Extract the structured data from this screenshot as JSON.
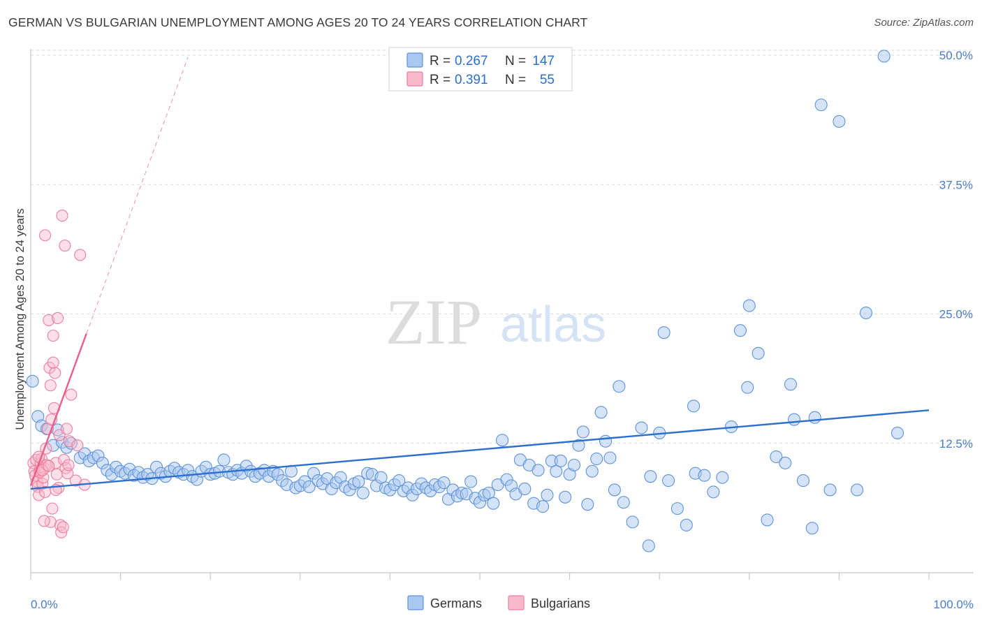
{
  "title": "GERMAN VS BULGARIAN UNEMPLOYMENT AMONG AGES 20 TO 24 YEARS CORRELATION CHART",
  "source": "Source: ZipAtlas.com",
  "watermark": {
    "zip": "ZIP",
    "atlas": "atlas"
  },
  "colors": {
    "german_fill": "#a9c8f0",
    "german_stroke": "#5f93d8",
    "german_line": "#2b6fcf",
    "bulgarian_fill": "#f8b9cc",
    "bulgarian_stroke": "#eb7fa0",
    "bulgarian_line": "#e8608a",
    "axis_text": "#4a7cc9",
    "grid": "#d9d9d9"
  },
  "legend": {
    "rows": [
      {
        "r_label": "R =",
        "r_value": "0.267",
        "n_label": "N =",
        "n_value": "147"
      },
      {
        "r_label": "R =",
        "r_value": "0.391",
        "n_label": "N =",
        "n_value": "55"
      }
    ]
  },
  "chart_data": {
    "type": "scatter",
    "title": "GERMAN VS BULGARIAN UNEMPLOYMENT AMONG AGES 20 TO 24 YEARS CORRELATION CHART",
    "xlabel": "",
    "ylabel": "Unemployment Among Ages 20 to 24 years",
    "xlim": [
      0,
      100
    ],
    "ylim": [
      0,
      50
    ],
    "x_tick_labels": [
      "0.0%",
      "100.0%"
    ],
    "y_ticks": [
      12.5,
      25.0,
      37.5,
      50.0
    ],
    "y_tick_labels": [
      "12.5%",
      "25.0%",
      "37.5%",
      "50.0%"
    ],
    "grid": true,
    "legend_position": "bottom",
    "series": [
      {
        "name": "Germans",
        "trendline": {
          "x": [
            0,
            100
          ],
          "y": [
            8.1,
            15.7
          ]
        },
        "points": [
          [
            0.2,
            18.5
          ],
          [
            0.8,
            15.1
          ],
          [
            1.2,
            14.2
          ],
          [
            1.8,
            13.9
          ],
          [
            2.5,
            12.3
          ],
          [
            3.0,
            13.8
          ],
          [
            3.5,
            12.6
          ],
          [
            4.0,
            12.1
          ],
          [
            4.5,
            12.5
          ],
          [
            5.5,
            11.1
          ],
          [
            6.0,
            11.5
          ],
          [
            6.5,
            10.8
          ],
          [
            7.0,
            11.1
          ],
          [
            7.5,
            11.3
          ],
          [
            8.0,
            10.6
          ],
          [
            8.5,
            9.9
          ],
          [
            9.0,
            9.5
          ],
          [
            9.5,
            10.2
          ],
          [
            10.0,
            9.8
          ],
          [
            10.5,
            9.6
          ],
          [
            11.0,
            10.0
          ],
          [
            11.5,
            9.4
          ],
          [
            12.0,
            9.7
          ],
          [
            12.5,
            9.2
          ],
          [
            13.0,
            9.5
          ],
          [
            13.5,
            9.1
          ],
          [
            14.0,
            10.2
          ],
          [
            14.5,
            9.6
          ],
          [
            15.0,
            9.3
          ],
          [
            15.5,
            9.8
          ],
          [
            16.0,
            10.1
          ],
          [
            16.5,
            9.7
          ],
          [
            17.0,
            9.5
          ],
          [
            17.5,
            9.9
          ],
          [
            18.0,
            9.3
          ],
          [
            18.5,
            9.0
          ],
          [
            19.0,
            9.8
          ],
          [
            19.5,
            10.2
          ],
          [
            20.0,
            9.5
          ],
          [
            20.5,
            9.6
          ],
          [
            21.0,
            9.8
          ],
          [
            21.5,
            10.9
          ],
          [
            22.0,
            9.7
          ],
          [
            22.5,
            9.5
          ],
          [
            23.0,
            9.9
          ],
          [
            23.5,
            9.6
          ],
          [
            24.0,
            10.3
          ],
          [
            24.5,
            9.8
          ],
          [
            25.0,
            9.3
          ],
          [
            25.5,
            9.6
          ],
          [
            26.0,
            9.9
          ],
          [
            26.5,
            9.3
          ],
          [
            27.0,
            9.8
          ],
          [
            27.5,
            9.5
          ],
          [
            28.0,
            8.9
          ],
          [
            28.5,
            8.5
          ],
          [
            29.0,
            9.8
          ],
          [
            29.5,
            8.2
          ],
          [
            30.0,
            8.4
          ],
          [
            30.5,
            8.8
          ],
          [
            31.0,
            8.3
          ],
          [
            31.5,
            9.6
          ],
          [
            32.0,
            8.9
          ],
          [
            32.5,
            8.6
          ],
          [
            33.0,
            9.1
          ],
          [
            33.5,
            8.1
          ],
          [
            34.0,
            8.7
          ],
          [
            34.5,
            9.2
          ],
          [
            35.0,
            8.3
          ],
          [
            35.5,
            8.0
          ],
          [
            36.0,
            8.6
          ],
          [
            36.5,
            8.8
          ],
          [
            37.0,
            7.7
          ],
          [
            37.5,
            9.6
          ],
          [
            38.0,
            9.5
          ],
          [
            38.5,
            8.4
          ],
          [
            39.0,
            9.2
          ],
          [
            39.5,
            8.2
          ],
          [
            40.0,
            8.0
          ],
          [
            40.5,
            8.5
          ],
          [
            41.0,
            8.9
          ],
          [
            41.5,
            7.9
          ],
          [
            42.0,
            8.2
          ],
          [
            42.5,
            7.5
          ],
          [
            43.0,
            8.1
          ],
          [
            43.5,
            8.6
          ],
          [
            44.0,
            8.2
          ],
          [
            44.5,
            7.9
          ],
          [
            45.0,
            8.5
          ],
          [
            45.5,
            8.3
          ],
          [
            46.0,
            8.7
          ],
          [
            46.5,
            7.1
          ],
          [
            47.0,
            8.0
          ],
          [
            47.5,
            7.4
          ],
          [
            48.0,
            7.7
          ],
          [
            48.5,
            7.6
          ],
          [
            49.0,
            8.8
          ],
          [
            49.5,
            7.2
          ],
          [
            50.0,
            6.8
          ],
          [
            50.5,
            7.5
          ],
          [
            51.0,
            7.7
          ],
          [
            51.5,
            6.7
          ],
          [
            52.0,
            8.5
          ],
          [
            52.5,
            12.8
          ],
          [
            53.0,
            9.0
          ],
          [
            53.5,
            8.4
          ],
          [
            54.0,
            7.6
          ],
          [
            54.5,
            10.9
          ],
          [
            55.0,
            8.1
          ],
          [
            55.5,
            10.4
          ],
          [
            56.0,
            6.7
          ],
          [
            56.5,
            9.9
          ],
          [
            57.0,
            6.4
          ],
          [
            57.5,
            7.5
          ],
          [
            58.0,
            10.8
          ],
          [
            58.5,
            9.8
          ],
          [
            59.0,
            10.8
          ],
          [
            59.5,
            7.3
          ],
          [
            60.0,
            9.5
          ],
          [
            60.5,
            10.4
          ],
          [
            61.0,
            12.3
          ],
          [
            61.5,
            13.6
          ],
          [
            62.0,
            6.6
          ],
          [
            62.5,
            9.8
          ],
          [
            63.0,
            11.0
          ],
          [
            63.5,
            15.5
          ],
          [
            64.0,
            12.7
          ],
          [
            64.5,
            11.1
          ],
          [
            65.0,
            8.0
          ],
          [
            65.5,
            18.0
          ],
          [
            66.0,
            6.8
          ],
          [
            67.0,
            4.9
          ],
          [
            68.0,
            14.0
          ],
          [
            69.0,
            9.3
          ],
          [
            70.0,
            13.5
          ],
          [
            71.0,
            8.9
          ],
          [
            72.0,
            6.2
          ],
          [
            73.0,
            4.6
          ],
          [
            74.0,
            9.6
          ],
          [
            75.0,
            9.4
          ],
          [
            76.0,
            7.8
          ],
          [
            77.0,
            9.2
          ],
          [
            78.0,
            14.1
          ],
          [
            79.0,
            23.4
          ],
          [
            80.0,
            25.8
          ],
          [
            81.0,
            21.2
          ],
          [
            82.0,
            5.1
          ],
          [
            83.0,
            11.2
          ],
          [
            84.0,
            10.6
          ],
          [
            85.0,
            14.8
          ],
          [
            86.0,
            8.9
          ],
          [
            87.0,
            4.3
          ],
          [
            88.0,
            45.2
          ],
          [
            89.0,
            8.0
          ],
          [
            90.0,
            43.6
          ],
          [
            92.0,
            8.0
          ],
          [
            93.0,
            25.1
          ],
          [
            95.0,
            49.9
          ],
          [
            96.5,
            13.5
          ],
          [
            79.8,
            17.9
          ],
          [
            73.8,
            16.1
          ],
          [
            70.5,
            23.2
          ],
          [
            68.8,
            2.6
          ],
          [
            84.6,
            18.2
          ],
          [
            87.3,
            15.0
          ]
        ]
      },
      {
        "name": "Bulgarians",
        "trendline": {
          "x": [
            0,
            6.2
          ],
          "y": [
            8.4,
            23.1
          ],
          "extended": {
            "x": [
              6.2,
              17.5
            ],
            "y": [
              23.1,
              49.8
            ]
          }
        },
        "points": [
          [
            0.3,
            10.6
          ],
          [
            0.4,
            9.8
          ],
          [
            0.5,
            9.4
          ],
          [
            0.6,
            10.9
          ],
          [
            0.7,
            8.8
          ],
          [
            0.8,
            8.3
          ],
          [
            0.9,
            7.5
          ],
          [
            1.0,
            9.9
          ],
          [
            1.1,
            10.6
          ],
          [
            1.2,
            11.0
          ],
          [
            1.3,
            8.6
          ],
          [
            1.4,
            9.2
          ],
          [
            1.5,
            10.1
          ],
          [
            1.6,
            7.8
          ],
          [
            1.7,
            12.0
          ],
          [
            1.8,
            10.4
          ],
          [
            1.9,
            13.9
          ],
          [
            2.0,
            24.4
          ],
          [
            2.1,
            19.8
          ],
          [
            2.2,
            18.1
          ],
          [
            2.3,
            14.8
          ],
          [
            2.4,
            6.2
          ],
          [
            2.5,
            22.9
          ],
          [
            2.6,
            15.9
          ],
          [
            2.7,
            19.3
          ],
          [
            2.8,
            10.6
          ],
          [
            2.9,
            9.5
          ],
          [
            3.0,
            24.6
          ],
          [
            3.1,
            8.2
          ],
          [
            3.2,
            13.3
          ],
          [
            3.3,
            4.6
          ],
          [
            3.4,
            3.9
          ],
          [
            3.5,
            34.5
          ],
          [
            3.6,
            4.4
          ],
          [
            3.7,
            10.9
          ],
          [
            3.8,
            31.6
          ],
          [
            3.9,
            10.1
          ],
          [
            4.0,
            13.9
          ],
          [
            4.1,
            9.6
          ],
          [
            4.2,
            10.4
          ],
          [
            4.3,
            12.7
          ],
          [
            4.5,
            17.2
          ],
          [
            5.0,
            8.9
          ],
          [
            5.2,
            12.3
          ],
          [
            5.5,
            30.7
          ],
          [
            6.0,
            8.5
          ],
          [
            1.6,
            32.6
          ],
          [
            2.2,
            4.9
          ],
          [
            1.0,
            9.7
          ],
          [
            0.9,
            11.2
          ],
          [
            1.3,
            9.9
          ],
          [
            2.5,
            20.3
          ],
          [
            1.5,
            5.0
          ],
          [
            2.0,
            10.3
          ],
          [
            2.8,
            8.0
          ]
        ]
      }
    ]
  }
}
